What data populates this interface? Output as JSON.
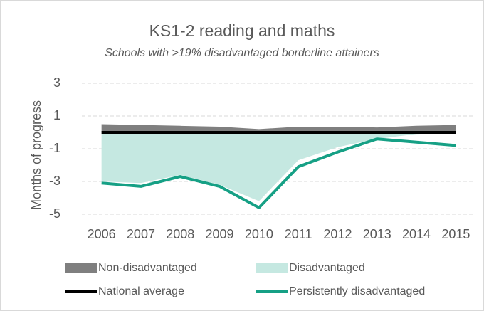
{
  "chart_data": {
    "type": "line",
    "title": "KS1-2 reading and maths",
    "subtitle": "Schools with >19% disadvantaged borderline attainers",
    "y_label": "Months of progress",
    "categories": [
      "2006",
      "2007",
      "2008",
      "2009",
      "2010",
      "2011",
      "2012",
      "2013",
      "2014",
      "2015"
    ],
    "ylim": [
      -5,
      3
    ],
    "yticks": [
      3,
      1,
      -1,
      -3,
      -5
    ],
    "grid": true,
    "series": [
      {
        "name": "Non-disadvantaged",
        "style": "area",
        "color": "#7f7f7f",
        "values": [
          0.5,
          0.45,
          0.4,
          0.35,
          0.2,
          0.35,
          0.35,
          0.3,
          0.4,
          0.45
        ]
      },
      {
        "name": "Disadvantaged",
        "style": "area",
        "color": "#c5e8e1",
        "values": [
          -3.0,
          -3.1,
          -2.6,
          -3.2,
          -4.2,
          -1.7,
          -0.9,
          -0.4,
          -0.1,
          0
        ]
      },
      {
        "name": "National average",
        "style": "line",
        "color": "#000000",
        "values": [
          0,
          0,
          0,
          0,
          0,
          0,
          0,
          0,
          0,
          0
        ]
      },
      {
        "name": "Persistently disadvantaged",
        "style": "line",
        "color": "#16a085",
        "values": [
          -3.1,
          -3.3,
          -2.7,
          -3.3,
          -4.6,
          -2.1,
          -1.2,
          -0.4,
          -0.6,
          -0.8
        ]
      }
    ]
  }
}
